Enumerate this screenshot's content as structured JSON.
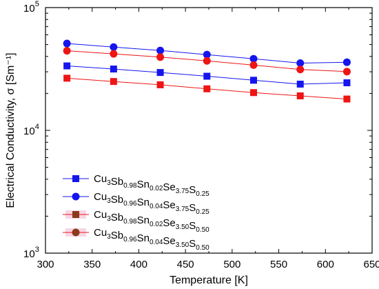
{
  "chart_data": {
    "type": "line",
    "xlabel": "Temperature [K]",
    "ylabel": "Electrical Conductivity, σ [Sm⁻¹]",
    "xlim": [
      300,
      650
    ],
    "ylim": [
      1000,
      100000
    ],
    "yscale": "log",
    "xticks": [
      300,
      350,
      400,
      450,
      500,
      550,
      600,
      650
    ],
    "xtick_labels": [
      "300",
      "350",
      "400",
      "450",
      "500",
      "550",
      "600",
      "650"
    ],
    "yticks": [
      1000,
      10000,
      100000
    ],
    "ytick_labels": [
      {
        "base": "10",
        "exp": "3"
      },
      {
        "base": "10",
        "exp": "4"
      },
      {
        "base": "10",
        "exp": "5"
      }
    ],
    "grid": false,
    "legend_position": "lower-left",
    "x": [
      323,
      373,
      423,
      473,
      523,
      573,
      623
    ],
    "series": [
      {
        "name": "Cu3Sb0.98Sn0.02Se3.75S0.25",
        "label_parts": [
          [
            "Cu",
            "3"
          ],
          [
            "Sb",
            "0.98"
          ],
          [
            "Sn",
            "0.02"
          ],
          [
            "Se",
            "3.75"
          ],
          [
            "S",
            "0.25"
          ]
        ],
        "marker": "square",
        "color": "#1515ee",
        "values": [
          33500,
          31600,
          29600,
          27600,
          25600,
          23800,
          24400
        ]
      },
      {
        "name": "Cu3Sb0.96Sn0.04Se3.75S0.25",
        "label_parts": [
          [
            "Cu",
            "3"
          ],
          [
            "Sb",
            "0.96"
          ],
          [
            "Sn",
            "0.04"
          ],
          [
            "Se",
            "3.75"
          ],
          [
            "S",
            "0.25"
          ]
        ],
        "marker": "circle",
        "color": "#1515ee",
        "values": [
          51000,
          47700,
          44700,
          41400,
          38300,
          35300,
          35900
        ]
      },
      {
        "name": "Cu3Sb0.98Sn0.02Se3.50S0.50",
        "label_parts": [
          [
            "Cu",
            "3"
          ],
          [
            "Sb",
            "0.98"
          ],
          [
            "Sn",
            "0.02"
          ],
          [
            "Se",
            "3.50"
          ],
          [
            "S",
            "0.50"
          ]
        ],
        "marker": "square",
        "color": "#ee1515",
        "legend_color": "#8b3a1a",
        "values": [
          26600,
          25000,
          23500,
          21800,
          20300,
          19100,
          18000
        ]
      },
      {
        "name": "Cu3Sb0.96Sn0.04Se3.50S0.50",
        "label_parts": [
          [
            "Cu",
            "3"
          ],
          [
            "Sb",
            "0.96"
          ],
          [
            "Sn",
            "0.04"
          ],
          [
            "Se",
            "3.50"
          ],
          [
            "S",
            "0.50"
          ]
        ],
        "marker": "circle",
        "color": "#ee1515",
        "legend_color": "#8b3a1a",
        "values": [
          44500,
          42000,
          39500,
          36800,
          34000,
          31300,
          30100
        ]
      }
    ]
  }
}
